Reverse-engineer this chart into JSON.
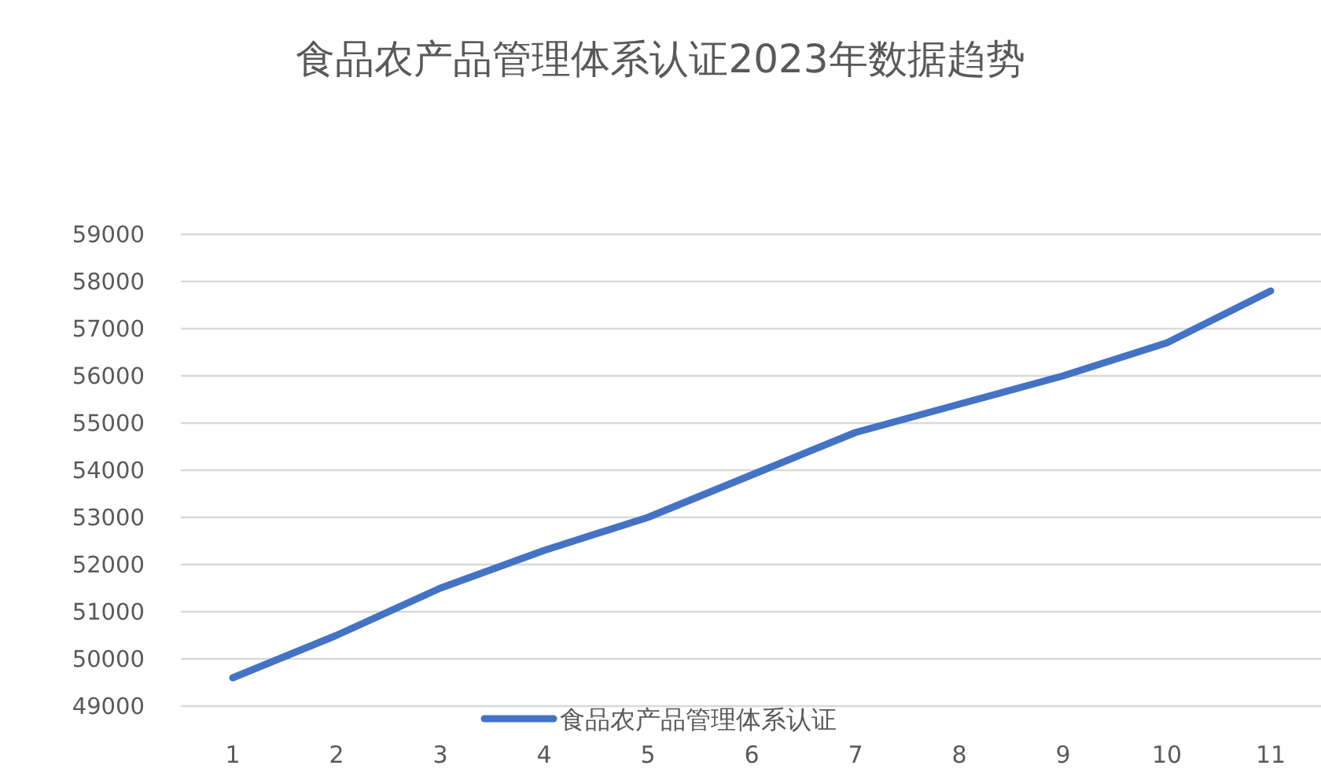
{
  "chart_data": {
    "type": "line",
    "title": "食品农产品管理体系认证2023年数据趋势",
    "categories": [
      "1",
      "2",
      "3",
      "4",
      "5",
      "6",
      "7",
      "8",
      "9",
      "10",
      "11"
    ],
    "series": [
      {
        "name": "食品农产品管理体系认证",
        "color": "#4472c4",
        "values": [
          49600,
          50500,
          51500,
          52300,
          53000,
          53900,
          54800,
          55400,
          56000,
          56700,
          57800
        ]
      }
    ],
    "ylim": [
      49000,
      59000
    ],
    "yticks": [
      49000,
      50000,
      51000,
      52000,
      53000,
      54000,
      55000,
      56000,
      57000,
      58000,
      59000
    ],
    "grid": "y",
    "legend": "bottom",
    "marker": "none",
    "line_style": "solid"
  }
}
